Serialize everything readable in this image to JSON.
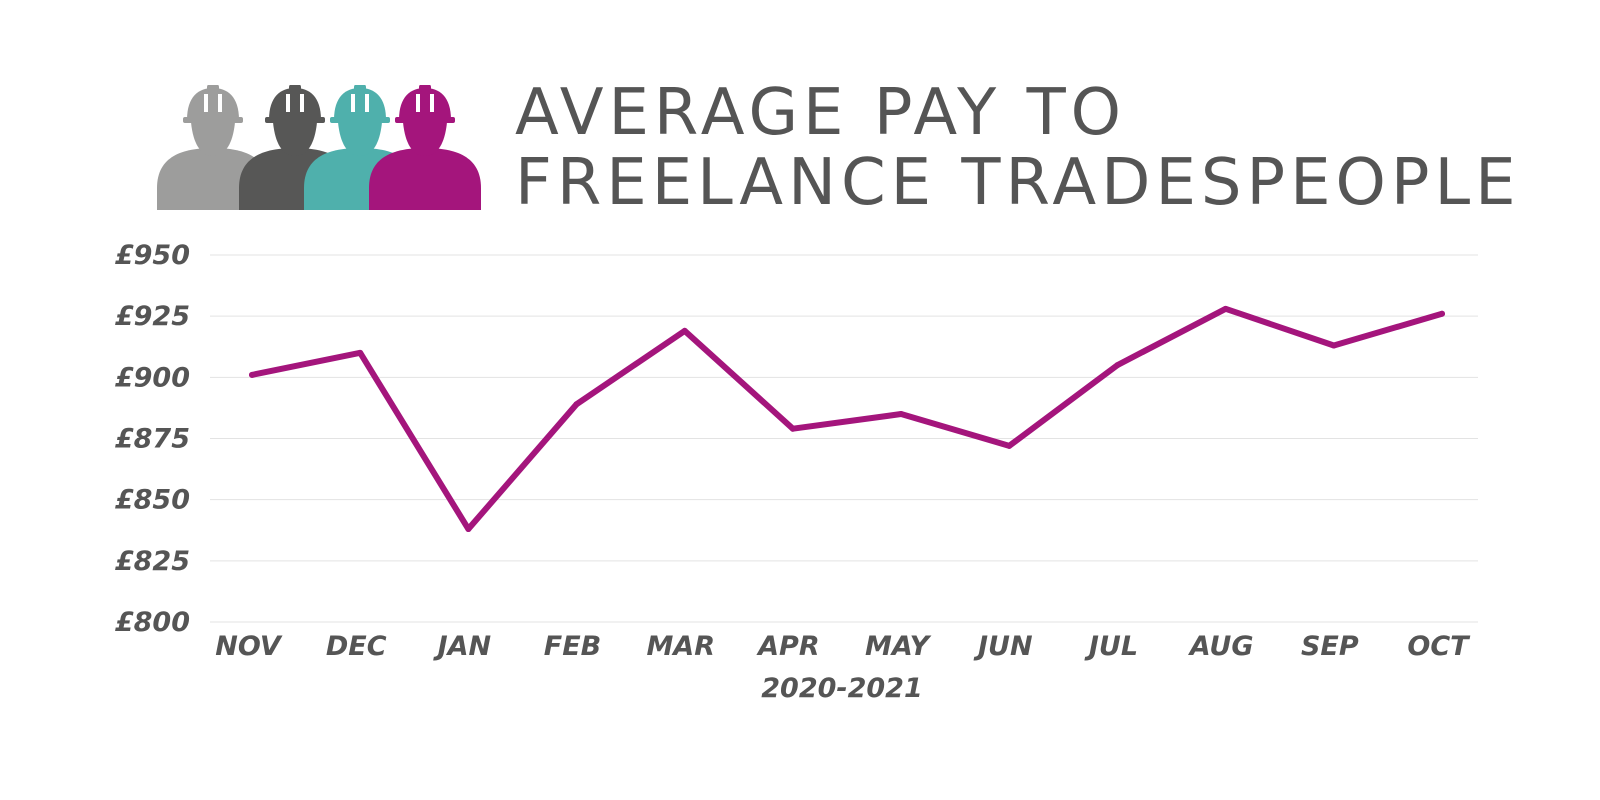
{
  "colors": {
    "line": "#a4157c",
    "text": "#555555",
    "grid": "#e3e3e3",
    "worker_1": "#9d9d9c",
    "worker_2": "#575756",
    "worker_3": "#4fb0ac",
    "worker_4": "#a4157c"
  },
  "logo": {
    "icon": "worker-helmet-icon"
  },
  "chart_data": {
    "type": "line",
    "title_lines": [
      "AVERAGE PAY TO",
      "FREELANCE TRADESPEOPLE"
    ],
    "xlabel": "2020-2021",
    "ylabel": "",
    "categories": [
      "NOV",
      "DEC",
      "JAN",
      "FEB",
      "MAR",
      "APR",
      "MAY",
      "JUN",
      "JUL",
      "AUG",
      "SEP",
      "OCT"
    ],
    "values": [
      901,
      910,
      838,
      889,
      919,
      879,
      885,
      872,
      905,
      928,
      913,
      926
    ],
    "ylim": [
      800,
      950
    ],
    "y_ticks": [
      950,
      925,
      900,
      875,
      850,
      825,
      800
    ],
    "y_tick_labels": [
      "£950",
      "£925",
      "£900",
      "£875",
      "£850",
      "£825",
      "£800"
    ],
    "grid": true,
    "legend": "none"
  }
}
